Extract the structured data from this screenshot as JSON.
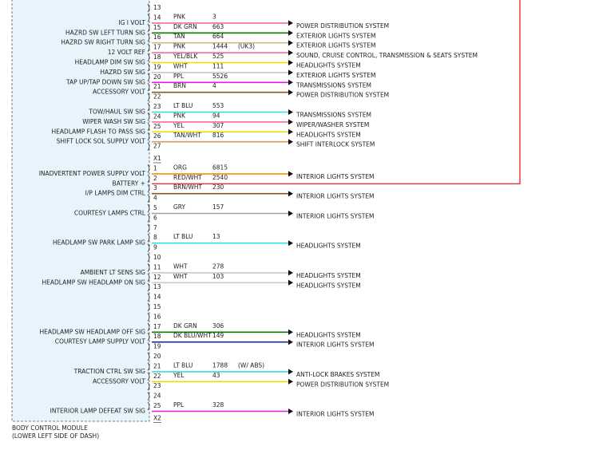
{
  "module": {
    "name": "BODY CONTROL MODULE",
    "location": "(LOWER LEFT SIDE OF DASH)"
  },
  "connectors": [
    {
      "pins": [
        {
          "pin": 13
        },
        {
          "pin": 14,
          "label": "IG I VOLT",
          "wire": "PNK",
          "circuit": 3,
          "destination": "POWER DISTRIBUTION SYSTEM",
          "color": "#f06aa8"
        },
        {
          "pin": 15,
          "label": "HAZRD SW LEFT TURN SIG",
          "wire": "DK GRN",
          "circuit": 663,
          "destination": "EXTERIOR LIGHTS SYSTEM",
          "color": "#0a7a0a"
        },
        {
          "pin": 16,
          "label": "HAZRD SW RIGHT TURN SIG",
          "wire": "TAN",
          "circuit": 664,
          "destination": "EXTERIOR LIGHTS SYSTEM",
          "color": "#d2b48c"
        },
        {
          "pin": 17,
          "label": "12 VOLT REF",
          "wire": "PNK",
          "circuit": 1444,
          "note": "(UK3)",
          "destination": "SOUND, CRUISE CONTROL, TRANSMISSION & SEATS SYSTEM",
          "color": "#f06aa8"
        },
        {
          "pin": 18,
          "label": "HEADLAMP DIM SW SIG",
          "wire": "YEL/BLK",
          "circuit": 525,
          "destination": "HEADLIGHTS SYSTEM",
          "color": "#e8e000"
        },
        {
          "pin": 19,
          "label": "HAZRD SW SIG",
          "wire": "WHT",
          "circuit": 111,
          "destination": "EXTERIOR LIGHTS SYSTEM",
          "color": "#c8c8c8"
        },
        {
          "pin": 20,
          "label": "TAP UP/TAP DOWN SW SIG",
          "wire": "PPL",
          "circuit": 5526,
          "destination": "TRANSMISSIONS SYSTEM",
          "color": "#e020e0"
        },
        {
          "pin": 21,
          "label": "ACCESSORY VOLT",
          "wire": "BRN",
          "circuit": 4,
          "destination": "POWER DISTRIBUTION SYSTEM",
          "color": "#8b5a14"
        },
        {
          "pin": 22
        },
        {
          "pin": 23,
          "label": "TOW/HAUL SW SIG",
          "wire": "LT BLU",
          "circuit": 553,
          "destination": "TRANSMISSIONS SYSTEM",
          "color": "#30e0e0"
        },
        {
          "pin": 24,
          "label": "WIPER WASH SW SIG",
          "wire": "PNK",
          "circuit": 94,
          "destination": "WIPER/WASHER SYSTEM",
          "color": "#f06aa8"
        },
        {
          "pin": 25,
          "label": "HEADLAMP FLASH TO PASS SIG",
          "wire": "YEL",
          "circuit": 307,
          "destination": "HEADLIGHTS SYSTEM",
          "color": "#e8e000"
        },
        {
          "pin": 26,
          "label": "SHIFT LOCK SOL SUPPLY VOLT",
          "wire": "TAN/WHT",
          "circuit": 816,
          "destination": "SHIFT INTERLOCK SYSTEM",
          "color": "#c8a060"
        },
        {
          "pin": 27
        }
      ]
    },
    {
      "name": "X1",
      "pins": [
        {
          "pin": 1,
          "label": "INADVERTENT POWER SUPPLY VOLT",
          "wire": "ORG",
          "circuit": 6815,
          "destination": "INTERIOR LIGHTS SYSTEM",
          "color": "#ff8c00"
        },
        {
          "pin": 2,
          "label": "BATTERY +",
          "wire": "RED/WHT",
          "circuit": 2540,
          "color": "#f03030"
        },
        {
          "pin": 3,
          "label": "I/P LAMPS DIM CTRL",
          "wire": "BRN/WHT",
          "circuit": 230,
          "destination": "INTERIOR LIGHTS SYSTEM",
          "color": "#8b5a14"
        },
        {
          "pin": 4
        },
        {
          "pin": 5,
          "label": "COURTESY LAMPS CTRL",
          "wire": "GRY",
          "circuit": 157,
          "destination": "INTERIOR LIGHTS SYSTEM",
          "color": "#a0a0a0"
        },
        {
          "pin": 6
        },
        {
          "pin": 7
        },
        {
          "pin": 8,
          "label": "HEADLAMP SW PARK LAMP SIG",
          "wire": "LT BLU",
          "circuit": 13,
          "destination": "HEADLIGHTS SYSTEM",
          "color": "#30e0e0"
        },
        {
          "pin": 9
        },
        {
          "pin": 10
        },
        {
          "pin": 11,
          "label": "AMBIENT LT SENS SIG",
          "wire": "WHT",
          "circuit": 278,
          "destination": "HEADLIGHTS SYSTEM",
          "color": "#c8c8c8"
        },
        {
          "pin": 12,
          "label": "HEADLAMP SW HEADLAMP ON SIG",
          "wire": "WHT",
          "circuit": 103,
          "destination": "HEADLIGHTS SYSTEM",
          "color": "#c8c8c8"
        },
        {
          "pin": 13
        },
        {
          "pin": 14
        },
        {
          "pin": 15
        },
        {
          "pin": 16
        },
        {
          "pin": 17,
          "label": "HEADLAMP SW HEADLAMP OFF SIG",
          "wire": "DK GRN",
          "circuit": 306,
          "destination": "HEADLIGHTS SYSTEM",
          "color": "#0a7a0a"
        },
        {
          "pin": 18,
          "label": "COURTESY LAMP SUPPLY VOLT",
          "wire": "DK BLU/WHT",
          "circuit": 149,
          "destination": "INTERIOR LIGHTS SYSTEM",
          "color": "#1a2a8a"
        },
        {
          "pin": 19
        },
        {
          "pin": 20
        },
        {
          "pin": 21,
          "label": "TRACTION CTRL SW SIG",
          "wire": "LT BLU",
          "circuit": 1788,
          "note": "(W/ ABS)",
          "destination": "ANTI-LOCK BRAKES SYSTEM",
          "color": "#30e0e0"
        },
        {
          "pin": 22,
          "label": "ACCESSORY VOLT",
          "wire": "YEL",
          "circuit": 43,
          "destination": "POWER DISTRIBUTION SYSTEM",
          "color": "#e8e000"
        },
        {
          "pin": 23
        },
        {
          "pin": 24
        },
        {
          "pin": 25,
          "label": "INTERIOR LAMP DEFEAT SW SIG",
          "wire": "PPL",
          "circuit": 328,
          "destination": "INTERIOR LIGHTS SYSTEM",
          "color": "#e020e0"
        }
      ]
    },
    {
      "name": "X2",
      "pins": []
    }
  ]
}
